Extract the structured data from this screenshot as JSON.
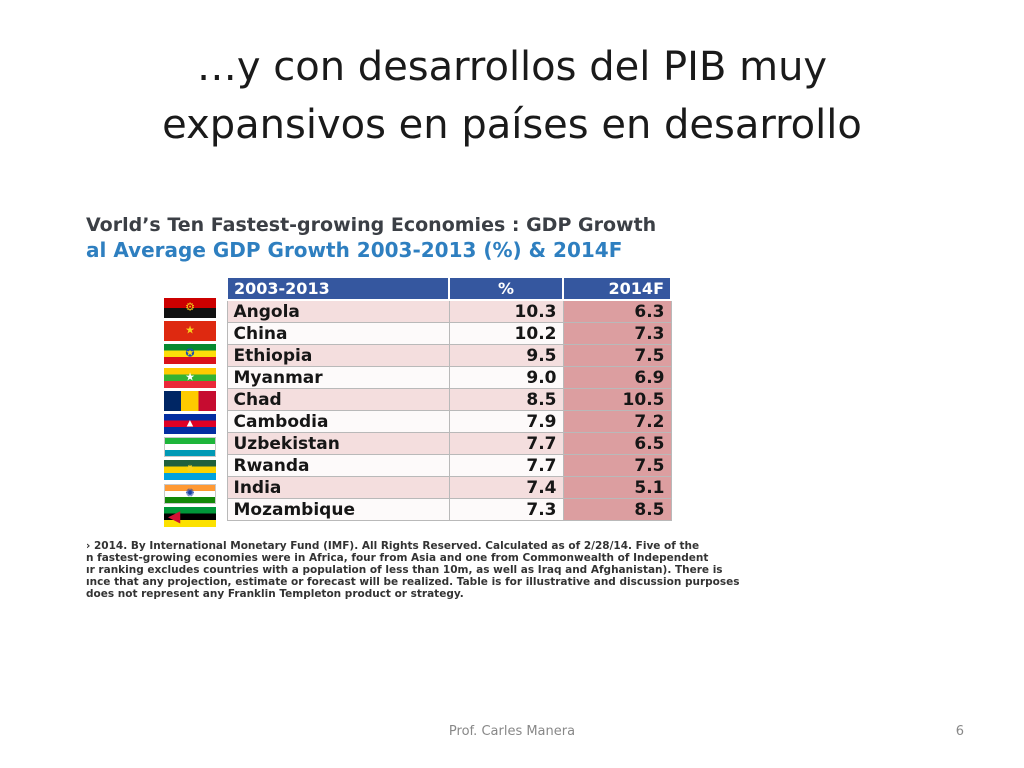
{
  "slide": {
    "title_line1": "…y con desarrollos del PIB muy",
    "title_line2": "expansivos en países en desarrollo"
  },
  "image": {
    "heading_line1": "Vorld’s Ten Fastest-growing Economies : GDP Growth",
    "heading_line2": "al Average GDP Growth 2003-2013 (%) & 2014F",
    "table": {
      "headers": [
        "2003-2013",
        "%",
        "2014F"
      ],
      "rows": [
        {
          "country": "Angola",
          "pct": "10.3",
          "forecast": "6.3"
        },
        {
          "country": "China",
          "pct": "10.2",
          "forecast": "7.3"
        },
        {
          "country": "Ethiopia",
          "pct": "9.5",
          "forecast": "7.5"
        },
        {
          "country": "Myanmar",
          "pct": "9.0",
          "forecast": "6.9"
        },
        {
          "country": "Chad",
          "pct": "8.5",
          "forecast": "10.5"
        },
        {
          "country": "Cambodia",
          "pct": "7.9",
          "forecast": "7.2"
        },
        {
          "country": "Uzbekistan",
          "pct": "7.7",
          "forecast": "6.5"
        },
        {
          "country": "Rwanda",
          "pct": "7.7",
          "forecast": "7.5"
        },
        {
          "country": "India",
          "pct": "7.4",
          "forecast": "5.1"
        },
        {
          "country": "Mozambique",
          "pct": "7.3",
          "forecast": "8.5"
        }
      ]
    },
    "flags": [
      {
        "icon": "angola-flag-icon",
        "colors": [
          "#cc0000",
          "#111111"
        ]
      },
      {
        "icon": "china-flag-icon",
        "colors": [
          "#de2910",
          "#de2910"
        ]
      },
      {
        "icon": "ethiopia-flag-icon",
        "colors": [
          "#078930",
          "#fcdd09",
          "#da121a"
        ]
      },
      {
        "icon": "myanmar-flag-icon",
        "colors": [
          "#fecb00",
          "#34b233",
          "#ea2839"
        ]
      },
      {
        "icon": "chad-flag-icon",
        "colors": [
          "#002664",
          "#fecb00",
          "#c60c30"
        ]
      },
      {
        "icon": "cambodia-flag-icon",
        "colors": [
          "#032ea1",
          "#e00025",
          "#032ea1"
        ]
      },
      {
        "icon": "uzbekistan-flag-icon",
        "colors": [
          "#1eb53a",
          "#ffffff",
          "#0099b5"
        ]
      },
      {
        "icon": "rwanda-flag-icon",
        "colors": [
          "#20603d",
          "#fad201",
          "#00a1de"
        ]
      },
      {
        "icon": "india-flag-icon",
        "colors": [
          "#ff9933",
          "#ffffff",
          "#138808"
        ]
      },
      {
        "icon": "mozambique-flag-icon",
        "colors": [
          "#009739",
          "#000000",
          "#fce100"
        ]
      }
    ],
    "footnote_lines": [
      "› 2014. By International Monetary Fund (IMF). All Rights Reserved. Calculated as of 2/28/14. Five of the",
      "n fastest-growing economies were in Africa, four from Asia and one from Commonwealth of Independent",
      "ır ranking excludes countries with a population of less than 10m, as well as Iraq and Afghanistan). There is",
      "ınce that any projection, estimate or forecast will be realized. Table is for illustrative and discussion purposes",
      "does not represent any Franklin Templeton product or strategy."
    ]
  },
  "footer": {
    "author": "Prof. Carles Manera",
    "page_number": "6"
  }
}
